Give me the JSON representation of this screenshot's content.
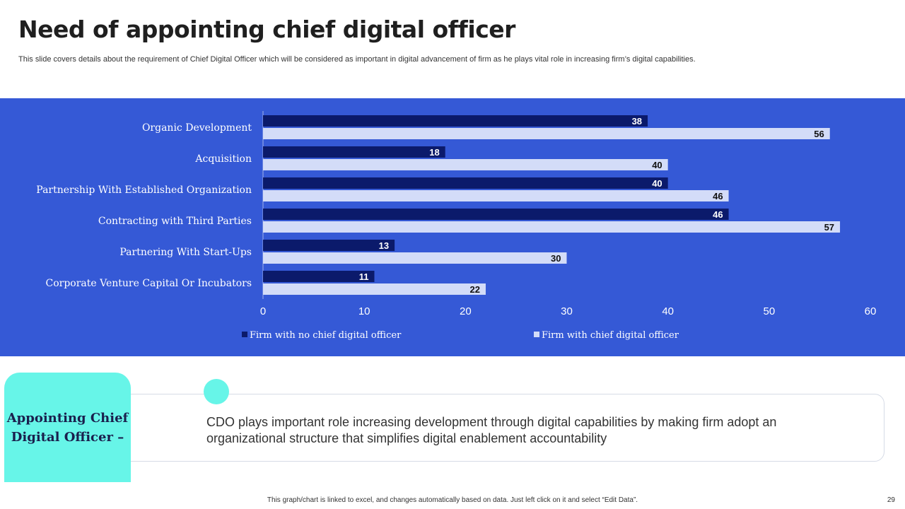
{
  "slide": {
    "title": "Need of appointing chief digital officer",
    "subtitle": "This slide covers details about the requirement of Chief Digital Officer which will be considered as important in digital advancement of firm as he plays vital role in increasing firm’s digital capabilities.",
    "footer_note": "This graph/chart is linked to excel, and changes automatically based on data. Just left click on it and select “Edit Data”.",
    "page_number": "29"
  },
  "card": {
    "heading": "Appointing Chief Digital Officer –",
    "body": "CDO plays important role increasing development through digital capabilities by making firm adopt an organizational structure that simplifies digital enablement accountability"
  },
  "colors": {
    "panel_bg": "#3559d6",
    "series_dark": "#0b1a6b",
    "series_light": "#d3dcf8",
    "accent_teal": "#67f5e8"
  },
  "chart_data": {
    "type": "bar",
    "orientation": "horizontal",
    "categories": [
      "Organic Development",
      "Acquisition",
      "Partnership With Established Organization",
      "Contracting with Third Parties",
      "Partnering With Start-Ups",
      "Corporate Venture Capital Or Incubators"
    ],
    "series": [
      {
        "name": "Firm with no chief digital officer",
        "values": [
          38,
          18,
          40,
          46,
          13,
          11
        ]
      },
      {
        "name": "Firm with chief digital officer",
        "values": [
          56,
          40,
          46,
          57,
          30,
          22
        ]
      }
    ],
    "xlim": [
      0,
      60
    ],
    "xticks": [
      0,
      10,
      20,
      30,
      40,
      50,
      60
    ],
    "grid": false,
    "legend_position": "bottom",
    "data_labels": true
  }
}
